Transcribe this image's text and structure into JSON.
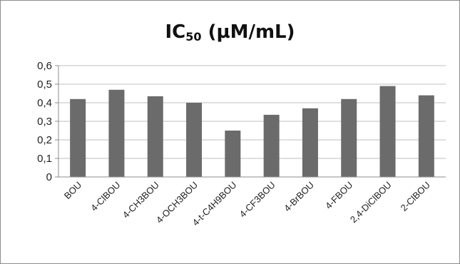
{
  "chart_data": {
    "type": "bar",
    "title": {
      "main": "IC",
      "subscript": "50",
      "suffix": " (µM/mL)"
    },
    "categories": [
      "BOU",
      "4-ClBOU",
      "4-CH3BOU",
      "4-OCH3BOU",
      "4-t-C4H9BOU",
      "4-CF3BOU",
      "4-BrBOU",
      "4-FBOU",
      "2,4-DiClBOU",
      "2-ClBOU"
    ],
    "values": [
      0.42,
      0.47,
      0.435,
      0.4,
      0.25,
      0.335,
      0.37,
      0.42,
      0.49,
      0.44
    ],
    "y_ticks": [
      "0",
      "0,1",
      "0,2",
      "0,3",
      "0,4",
      "0,5",
      "0,6"
    ],
    "ylim": [
      0,
      0.6
    ],
    "xlabel": "",
    "ylabel": "",
    "grid": true,
    "legend": "none",
    "colors": {
      "bar": "#6b6b6b",
      "grid": "#bfbfbf",
      "axis": "#8c8c8c"
    }
  }
}
